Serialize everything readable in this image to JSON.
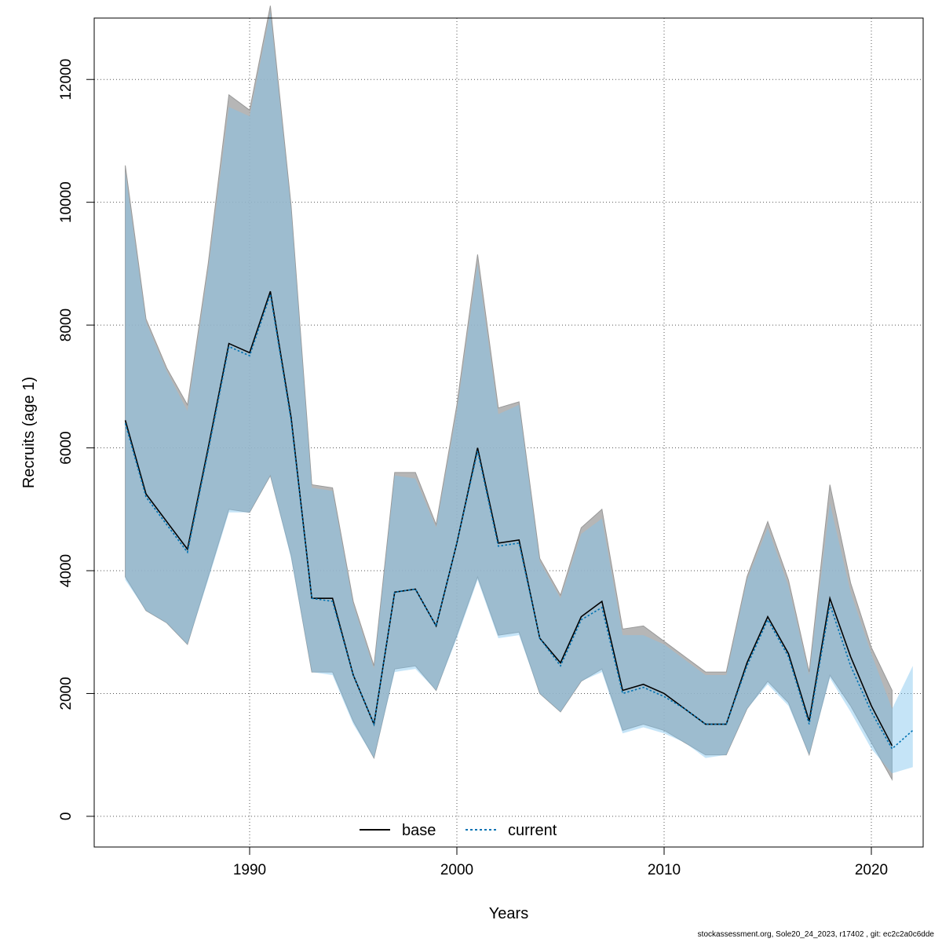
{
  "chart_data": {
    "type": "area",
    "xlabel": "Years",
    "ylabel": "Recruits (age 1)",
    "xlim": [
      1982.5,
      2022.5
    ],
    "ylim": [
      -500,
      13000
    ],
    "x_ticks": [
      1990,
      2000,
      2010,
      2020
    ],
    "y_ticks": [
      0,
      2000,
      4000,
      6000,
      8000,
      10000,
      12000
    ],
    "grid": true,
    "legend_position": "bottom-center",
    "series": [
      {
        "name": "base",
        "line_color": "#000000",
        "line_style": "solid",
        "band_color": "#a9a9a9",
        "x": [
          1984,
          1985,
          1986,
          1987,
          1988,
          1989,
          1990,
          1991,
          1992,
          1993,
          1994,
          1995,
          1996,
          1997,
          1998,
          1999,
          2000,
          2001,
          2002,
          2003,
          2004,
          2005,
          2006,
          2007,
          2008,
          2009,
          2010,
          2011,
          2012,
          2013,
          2014,
          2015,
          2016,
          2017,
          2018,
          2019,
          2020,
          2021
        ],
        "values": [
          6450,
          5250,
          4800,
          4350,
          6000,
          7700,
          7550,
          8550,
          6500,
          3550,
          3550,
          2300,
          1500,
          3650,
          3700,
          3100,
          4450,
          6000,
          4450,
          4500,
          2900,
          2500,
          3250,
          3500,
          2050,
          2150,
          2000,
          1750,
          1500,
          1500,
          2500,
          3250,
          2650,
          1550,
          3550,
          2600,
          1800,
          1150
        ],
        "lower": [
          3900,
          3350,
          3150,
          2800,
          3900,
          5000,
          4950,
          5550,
          4250,
          2350,
          2350,
          1550,
          950,
          2400,
          2450,
          2050,
          2950,
          3900,
          2950,
          3000,
          2000,
          1700,
          2200,
          2400,
          1400,
          1500,
          1400,
          1200,
          1000,
          1000,
          1750,
          2200,
          1850,
          1000,
          2300,
          1800,
          1200,
          600
        ],
        "upper": [
          10600,
          8100,
          7300,
          6700,
          9000,
          11750,
          11500,
          13200,
          9950,
          5400,
          5350,
          3500,
          2450,
          5600,
          5600,
          4750,
          6700,
          9150,
          6650,
          6750,
          4200,
          3600,
          4700,
          5000,
          3050,
          3100,
          2850,
          2600,
          2350,
          2350,
          3900,
          4800,
          3850,
          2350,
          5400,
          3800,
          2750,
          2050
        ]
      },
      {
        "name": "current",
        "line_color": "#0072b2",
        "line_style": "dotted",
        "band_color": "#7fc4ee",
        "x": [
          1984,
          1985,
          1986,
          1987,
          1988,
          1989,
          1990,
          1991,
          1992,
          1993,
          1994,
          1995,
          1996,
          1997,
          1998,
          1999,
          2000,
          2001,
          2002,
          2003,
          2004,
          2005,
          2006,
          2007,
          2008,
          2009,
          2010,
          2011,
          2012,
          2013,
          2014,
          2015,
          2016,
          2017,
          2018,
          2019,
          2020,
          2021,
          2022
        ],
        "values": [
          6400,
          5200,
          4750,
          4300,
          5950,
          7650,
          7500,
          8500,
          6450,
          3550,
          3500,
          2300,
          1500,
          3650,
          3700,
          3100,
          4450,
          5950,
          4400,
          4450,
          2900,
          2450,
          3200,
          3400,
          2000,
          2100,
          1950,
          1750,
          1500,
          1500,
          2450,
          3200,
          2600,
          1500,
          3450,
          2450,
          1700,
          1100,
          1400
        ],
        "lower": [
          3850,
          3350,
          3150,
          2800,
          3850,
          4950,
          4950,
          5550,
          4200,
          2350,
          2300,
          1500,
          950,
          2350,
          2400,
          2050,
          2900,
          3850,
          2900,
          2950,
          2000,
          1700,
          2200,
          2350,
          1350,
          1450,
          1350,
          1200,
          950,
          1000,
          1750,
          2150,
          1800,
          1000,
          2250,
          1700,
          1100,
          700,
          800
        ],
        "upper": [
          10500,
          8050,
          7250,
          6600,
          8900,
          11550,
          11400,
          13100,
          9900,
          5350,
          5300,
          3450,
          2400,
          5550,
          5500,
          4700,
          6600,
          9000,
          6550,
          6700,
          4150,
          3550,
          4600,
          4850,
          2950,
          2950,
          2800,
          2550,
          2300,
          2300,
          3850,
          4700,
          3750,
          2300,
          5100,
          3650,
          2650,
          1750,
          2450
        ]
      }
    ]
  },
  "footer_text": "stockassessment.org, Sole20_24_2023, r17402 , git: ec2c2a0c6dde"
}
